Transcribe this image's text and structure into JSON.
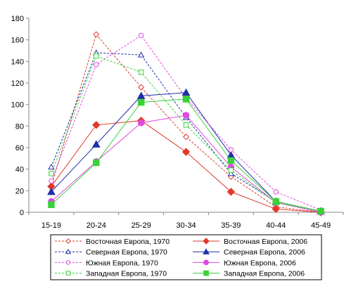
{
  "chart_data": {
    "type": "line",
    "title": "",
    "xlabel": "",
    "ylabel": "",
    "categories": [
      "15-19",
      "20-24",
      "25-29",
      "30-34",
      "35-39",
      "40-44",
      "45-49"
    ],
    "ylim": [
      0,
      180
    ],
    "yticks": [
      0,
      20,
      40,
      60,
      80,
      100,
      120,
      140,
      160,
      180
    ],
    "grid": false,
    "legend_position": "bottom",
    "series": [
      {
        "name": "Восточная Европа, 1970",
        "color": "#e0392b",
        "dashed": true,
        "marker": "diamond",
        "filled": false,
        "values": [
          24,
          165,
          116,
          70,
          33,
          5,
          0
        ]
      },
      {
        "name": "Восточная Европа, 2006",
        "color": "#e0392b",
        "dashed": false,
        "marker": "diamond",
        "filled": true,
        "values": [
          24,
          81,
          85,
          56,
          19,
          3,
          0
        ]
      },
      {
        "name": "Северная Европа, 1970",
        "color": "#1f2fa8",
        "dashed": true,
        "marker": "triangle",
        "filled": false,
        "values": [
          42,
          148,
          146,
          88,
          36,
          10,
          1
        ]
      },
      {
        "name": "Северная Европа, 2006",
        "color": "#1f2fa8",
        "dashed": false,
        "marker": "triangle",
        "filled": true,
        "values": [
          19,
          63,
          108,
          111,
          53,
          10,
          1
        ]
      },
      {
        "name": "Южная Европа, 1970",
        "color": "#e04ae0",
        "dashed": true,
        "marker": "circle",
        "filled": false,
        "values": [
          29,
          137,
          164,
          106,
          58,
          19,
          2
        ]
      },
      {
        "name": "Южная Европа, 2006",
        "color": "#e04ae0",
        "dashed": false,
        "marker": "circle",
        "filled": true,
        "values": [
          10,
          47,
          83,
          90,
          42,
          9,
          0
        ]
      },
      {
        "name": "Западная Европа, 1970",
        "color": "#3ad13a",
        "dashed": true,
        "marker": "square",
        "filled": false,
        "values": [
          36,
          145,
          130,
          81,
          39,
          9,
          1
        ]
      },
      {
        "name": "Западная Европа, 2006",
        "color": "#3ad13a",
        "dashed": false,
        "marker": "square",
        "filled": true,
        "values": [
          7,
          46,
          102,
          105,
          48,
          10,
          1
        ]
      }
    ]
  }
}
